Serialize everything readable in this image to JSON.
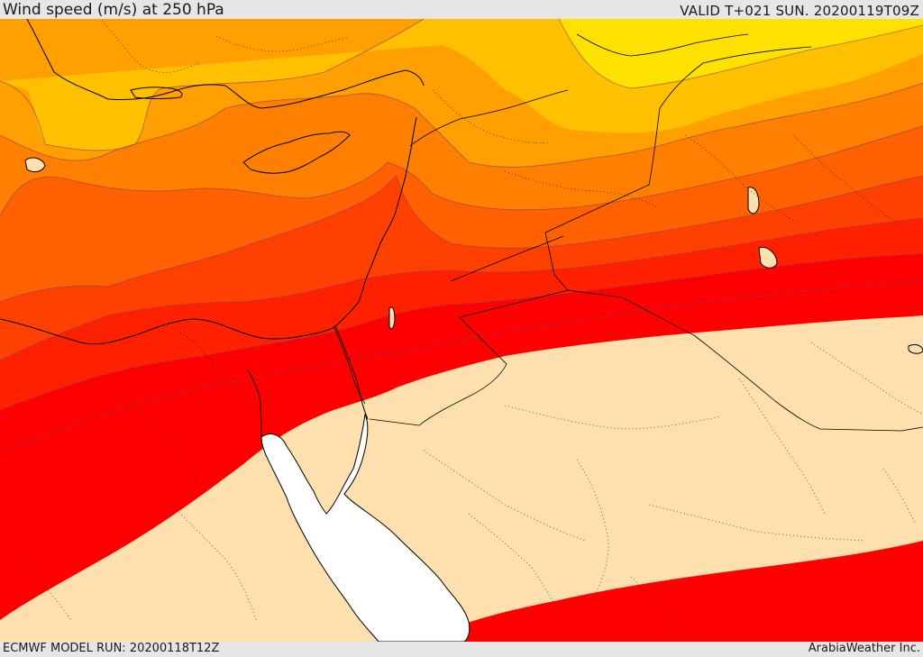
{
  "header": {
    "title": "Wind speed (m/s) at 250 hPa",
    "valid": "VALID T+021 SUN. 20200119T09Z"
  },
  "footer": {
    "model_run": "ECMWF MODEL RUN: 20200118T12Z",
    "credit": "ArabiaWeather Inc."
  },
  "colors": {
    "band_1": "#ffe100",
    "band_2": "#ffc000",
    "band_3": "#ff9f00",
    "band_4": "#ff8000",
    "band_5": "#ff6000",
    "band_6": "#ff4000",
    "band_7": "#ff2000",
    "band_8": "#ff0000",
    "low_wind_fill": "#fde0ad",
    "sea_mask": "#ffffff",
    "contour_line": "#8a3a6a",
    "border_line": "#000000"
  }
}
